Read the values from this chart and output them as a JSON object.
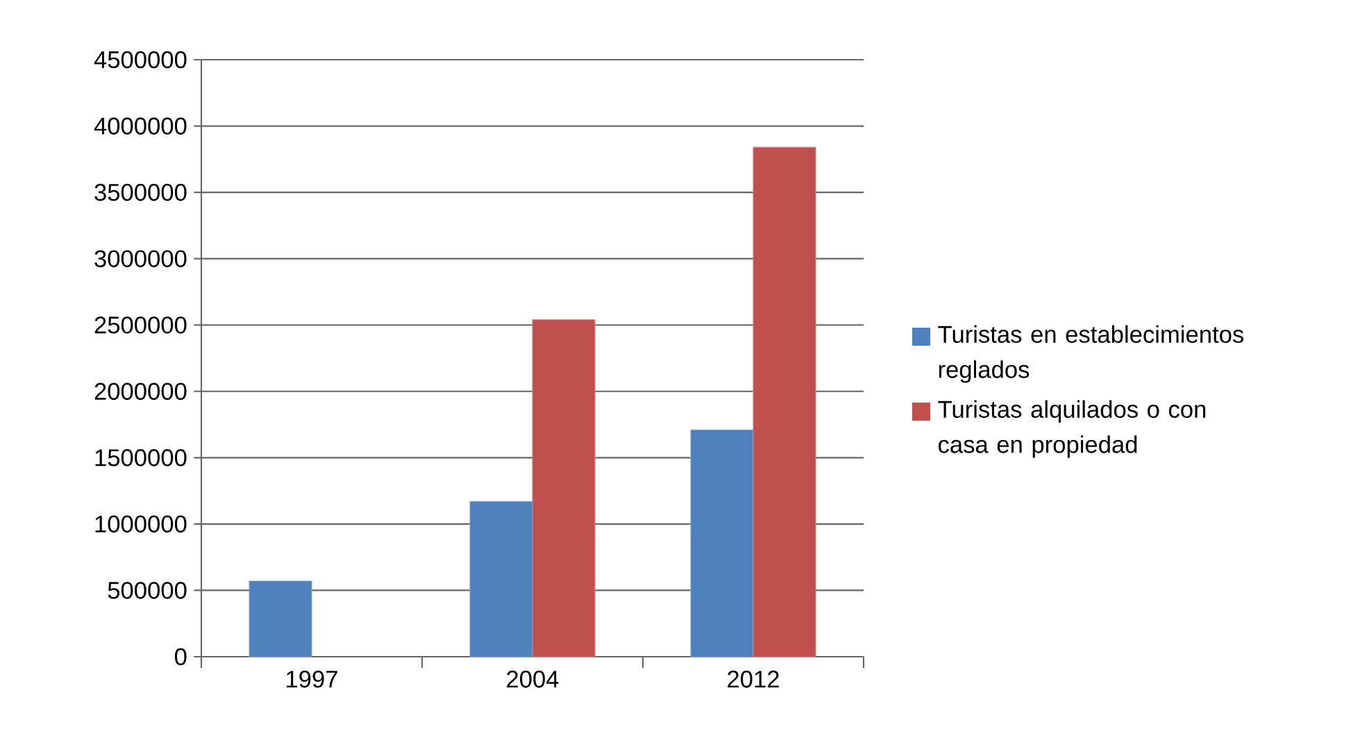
{
  "chart_data": {
    "type": "bar",
    "categories": [
      "1997",
      "2004",
      "2012"
    ],
    "series": [
      {
        "name": "Turistas en establecimientos reglados",
        "color": "#4f81bd",
        "values": [
          570000,
          1170000,
          1710000
        ]
      },
      {
        "name": "Turistas alquilados o con casa en propiedad",
        "color": "#c0504d",
        "values": [
          null,
          2540000,
          3840000
        ]
      }
    ],
    "ylim": [
      0,
      4500000
    ],
    "yticks": [
      0,
      500000,
      1000000,
      1500000,
      2000000,
      2500000,
      3000000,
      3500000,
      4000000,
      4500000
    ],
    "grid": "y",
    "legend": "right"
  }
}
